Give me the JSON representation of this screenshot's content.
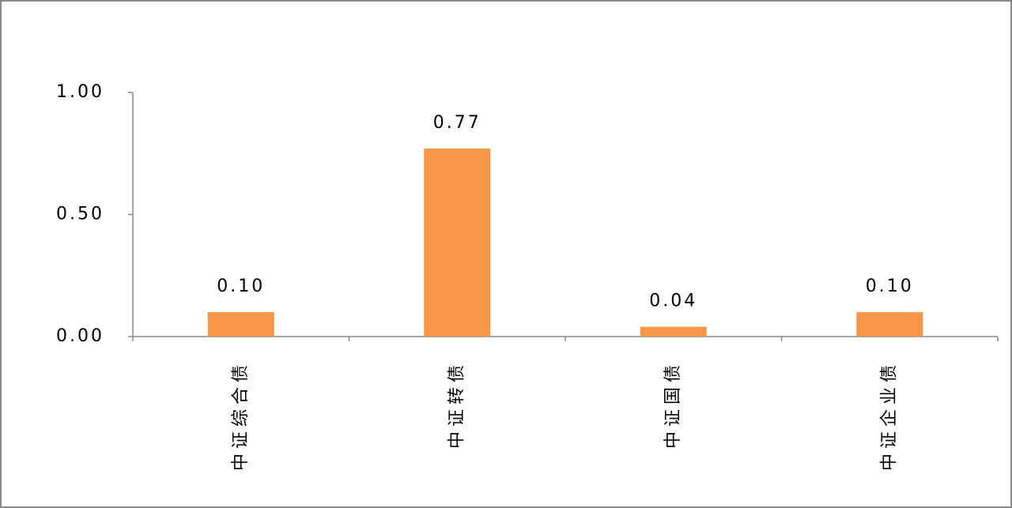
{
  "chart_data": {
    "type": "bar",
    "categories": [
      "中证综合债",
      "中证转债",
      "中证国债",
      "中证企业债"
    ],
    "values": [
      0.1,
      0.77,
      0.04,
      0.1
    ],
    "value_labels": [
      "0.10",
      "0.77",
      "0.04",
      "0.10"
    ],
    "color": "#f79646",
    "ylim": [
      0,
      1
    ],
    "yticks": [
      {
        "value": 0,
        "label": "0.00"
      },
      {
        "value": 0.5,
        "label": "0.50"
      },
      {
        "value": 1,
        "label": "1.00"
      }
    ],
    "grid": false
  }
}
